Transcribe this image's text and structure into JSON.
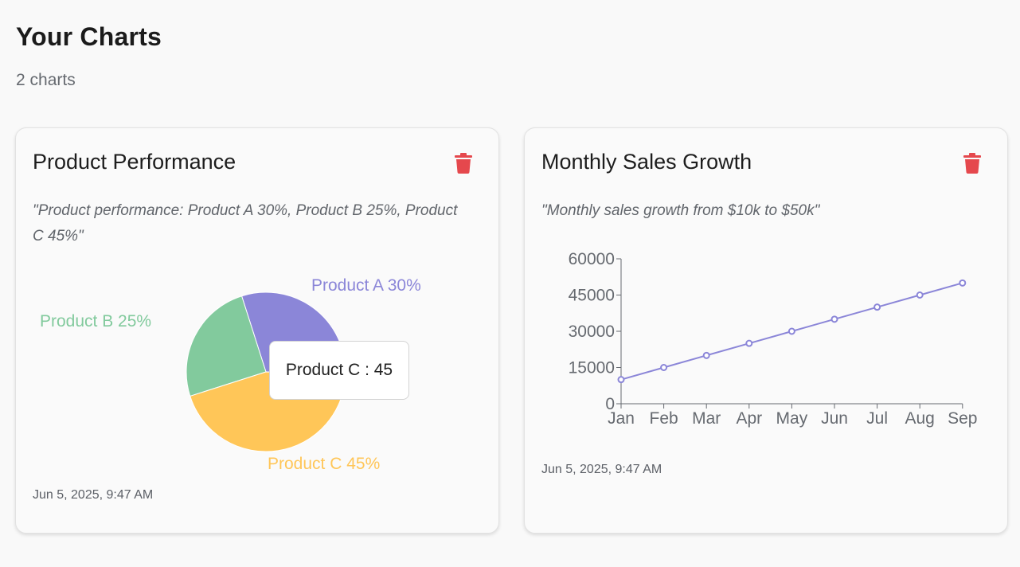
{
  "header": {
    "title": "Your Charts",
    "count_label": "2 charts"
  },
  "colors": {
    "delete": "#e5484d",
    "productA": "#8b86d8",
    "productB": "#82ca9d",
    "productC": "#ffc658",
    "line": "#8b86d8"
  },
  "cards": [
    {
      "title": "Product Performance",
      "description": "\"Product performance: Product A 30%, Product B 25%, Product C 45%\"",
      "date": "Jun 5, 2025, 9:47 AM",
      "delete_icon": "trash-icon",
      "tooltip": "Product C : 45"
    },
    {
      "title": "Monthly Sales Growth",
      "description": "\"Monthly sales growth from $10k to $50k\"",
      "date": "Jun 5, 2025, 9:47 AM",
      "delete_icon": "trash-icon"
    }
  ],
  "chart_data": [
    {
      "type": "pie",
      "slices": [
        {
          "label": "Product A 30%",
          "name": "Product A",
          "value": 30,
          "color": "#8b86d8"
        },
        {
          "label": "Product B 25%",
          "name": "Product B",
          "value": 25,
          "color": "#82ca9d"
        },
        {
          "label": "Product C 45%",
          "name": "Product C",
          "value": 45,
          "color": "#ffc658"
        }
      ]
    },
    {
      "type": "line",
      "categories": [
        "Jan",
        "Feb",
        "Mar",
        "Apr",
        "May",
        "Jun",
        "Jul",
        "Aug",
        "Sep"
      ],
      "values": [
        10000,
        15000,
        20000,
        25000,
        30000,
        35000,
        40000,
        45000,
        50000
      ],
      "yticks": [
        "0",
        "15000",
        "30000",
        "45000",
        "60000"
      ],
      "ylim": [
        0,
        60000
      ],
      "color": "#8b86d8"
    }
  ]
}
